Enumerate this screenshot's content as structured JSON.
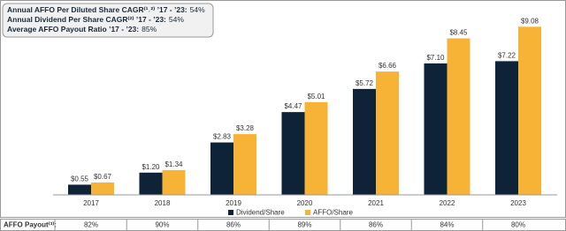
{
  "chart_data": {
    "type": "bar",
    "annotations": [
      {
        "label": "Annual AFFO Per Diluted Share CAGR⁽¹˒²⁾ ’17 - ’23:",
        "value": "54%"
      },
      {
        "label": "Annual Dividend Per Share CAGR⁽²⁾ ’17 - ’23:",
        "value": "54%"
      },
      {
        "label": "Average AFFO Payout Ratio ’17 - ’23:",
        "value": "85%"
      }
    ],
    "categories": [
      "2017",
      "2018",
      "2019",
      "2020",
      "2021",
      "2022",
      "2023"
    ],
    "series": [
      {
        "name": "Dividend/Share",
        "color": "#0e2338",
        "values": [
          0.55,
          1.2,
          2.83,
          4.47,
          5.72,
          7.1,
          7.22
        ],
        "value_labels": [
          "$0.55",
          "$1.20",
          "$2.83",
          "$4.47",
          "$5.72",
          "$7.10",
          "$7.22"
        ]
      },
      {
        "name": "AFFO/Share",
        "color": "#f6b335",
        "values": [
          0.67,
          1.34,
          3.28,
          5.01,
          6.66,
          8.45,
          9.08
        ],
        "value_labels": [
          "$0.67",
          "$1.34",
          "$3.28",
          "$5.01",
          "$6.66",
          "$8.45",
          "$9.08"
        ]
      }
    ],
    "payout_row": {
      "label": "AFFO Payout⁽³⁾:",
      "values": [
        "82%",
        "90%",
        "86%",
        "89%",
        "86%",
        "84%",
        "80%"
      ]
    }
  }
}
